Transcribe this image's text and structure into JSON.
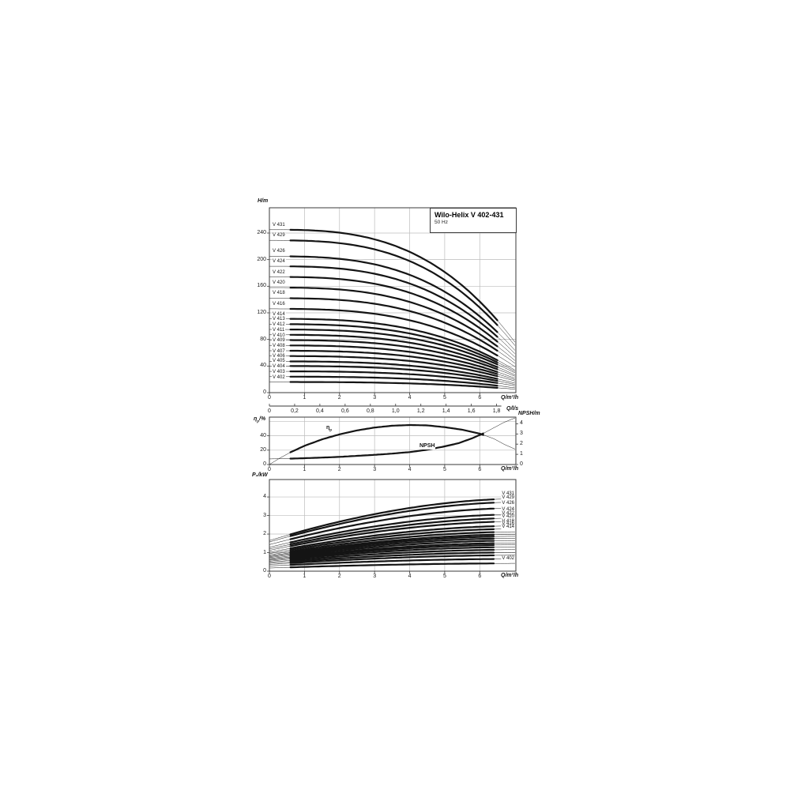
{
  "title_box": {
    "title": "Wilo-Helix V 402-431",
    "subtitle": "50 Hz"
  },
  "colors": {
    "background": "#ffffff",
    "curve": "#141414",
    "grid": "#bcbcbc",
    "axis": "#3a3a3a",
    "text": "#1a1a1a"
  },
  "chart_data": [
    {
      "id": "head_flow_curves",
      "type": "line",
      "title": "Wilo-Helix V 402-431",
      "subtitle": "50 Hz",
      "ylabel": "H/m",
      "xlabel": "Q/m³/h",
      "xlabel2": "Q/l/s",
      "xlim": [
        0,
        7.03
      ],
      "ylim": [
        0,
        278
      ],
      "grid": true,
      "legend_position": "inline-left",
      "xticks": [
        {
          "t": "0",
          "v": 0
        },
        {
          "t": "1",
          "v": 1
        },
        {
          "t": "2",
          "v": 2
        },
        {
          "t": "3",
          "v": 3
        },
        {
          "t": "4",
          "v": 4
        },
        {
          "t": "5",
          "v": 5
        },
        {
          "t": "6",
          "v": 6
        }
      ],
      "yticks": [
        {
          "t": "0",
          "v": 0
        },
        {
          "t": "40",
          "v": 40
        },
        {
          "t": "80",
          "v": 80
        },
        {
          "t": "120",
          "v": 120
        },
        {
          "t": "160",
          "v": 160
        },
        {
          "t": "200",
          "v": 200
        },
        {
          "t": "240",
          "v": 240
        }
      ],
      "x2ticks": [
        {
          "t": "0",
          "v": 0
        },
        {
          "t": "0,2",
          "v": 0.2
        },
        {
          "t": "0,4",
          "v": 0.4
        },
        {
          "t": "0,6",
          "v": 0.6
        },
        {
          "t": "0,8",
          "v": 0.8
        },
        {
          "t": "1,0",
          "v": 1.0
        },
        {
          "t": "1,2",
          "v": 1.2
        },
        {
          "t": "1,4",
          "v": 1.4
        },
        {
          "t": "1,6",
          "v": 1.6
        },
        {
          "t": "1,8",
          "v": 1.8
        }
      ],
      "series": [
        {
          "label": "V 431",
          "h0": 245,
          "h_end": 74
        },
        {
          "label": "V 429",
          "h0": 229,
          "h_end": 69
        },
        {
          "label": "V 426",
          "h0": 205,
          "h_end": 62
        },
        {
          "label": "V 424",
          "h0": 190,
          "h_end": 57
        },
        {
          "label": "V 422",
          "h0": 174,
          "h_end": 52
        },
        {
          "label": "V 420",
          "h0": 158,
          "h_end": 47
        },
        {
          "label": "V 418",
          "h0": 142,
          "h_end": 43
        },
        {
          "label": "V 416",
          "h0": 126,
          "h_end": 38
        },
        {
          "label": "V 414",
          "h0": 111,
          "h_end": 33
        },
        {
          "label": "V 413",
          "h0": 103,
          "h_end": 31
        },
        {
          "label": "V 412",
          "h0": 95,
          "h_end": 29
        },
        {
          "label": "V 411",
          "h0": 87,
          "h_end": 26
        },
        {
          "label": "V 410",
          "h0": 79,
          "h_end": 24
        },
        {
          "label": "V 409",
          "h0": 71,
          "h_end": 21
        },
        {
          "label": "V 408",
          "h0": 63,
          "h_end": 19
        },
        {
          "label": "V 407",
          "h0": 55,
          "h_end": 17
        },
        {
          "label": "V 406",
          "h0": 47,
          "h_end": 14
        },
        {
          "label": "V 405",
          "h0": 40,
          "h_end": 12
        },
        {
          "label": "V 404",
          "h0": 32,
          "h_end": 10
        },
        {
          "label": "V 403",
          "h0": 24,
          "h_end": 7
        },
        {
          "label": "V 402",
          "h0": 16,
          "h_end": 5
        }
      ]
    },
    {
      "id": "efficiency_npsh",
      "type": "line",
      "ylabel_left": "ηp/%",
      "ylabel_left_parts": {
        "sym": "η",
        "sub": "p",
        "rest": "/%"
      },
      "ylabel_right": "NPSH/m",
      "xlabel": "Q/m³/h",
      "xlim": [
        0,
        7.03
      ],
      "ylim_left": [
        0,
        66
      ],
      "ylim_right": [
        0,
        4.65
      ],
      "grid": true,
      "xticks": [
        {
          "t": "0",
          "v": 0
        },
        {
          "t": "1",
          "v": 1
        },
        {
          "t": "2",
          "v": 2
        },
        {
          "t": "3",
          "v": 3
        },
        {
          "t": "4",
          "v": 4
        },
        {
          "t": "5",
          "v": 5
        },
        {
          "t": "6",
          "v": 6
        }
      ],
      "yticks_left": [
        {
          "t": "0",
          "v": 0
        },
        {
          "t": "20",
          "v": 20
        },
        {
          "t": "40",
          "v": 40
        }
      ],
      "yticks_right": [
        {
          "t": "0",
          "v": 0
        },
        {
          "t": "1",
          "v": 1
        },
        {
          "t": "2",
          "v": 2
        },
        {
          "t": "3",
          "v": 3
        },
        {
          "t": "4",
          "v": 4
        }
      ],
      "series": [
        {
          "name": "ηp",
          "label_parts": {
            "sym": "η",
            "sub": "p"
          },
          "axis": "left",
          "points": [
            [
              0,
              0
            ],
            [
              0.3,
              9
            ],
            [
              0.6,
              17
            ],
            [
              1,
              26
            ],
            [
              1.5,
              35
            ],
            [
              2,
              42
            ],
            [
              2.5,
              47.5
            ],
            [
              3,
              51.5
            ],
            [
              3.5,
              54
            ],
            [
              4,
              55
            ],
            [
              4.5,
              54.5
            ],
            [
              5,
              52
            ],
            [
              5.5,
              48.5
            ],
            [
              6,
              43
            ],
            [
              6.4,
              36
            ],
            [
              6.7,
              28
            ],
            [
              7.03,
              21
            ]
          ]
        },
        {
          "name": "NPSH",
          "axis": "right",
          "points": [
            [
              0,
              0.55
            ],
            [
              0.6,
              0.58
            ],
            [
              1,
              0.62
            ],
            [
              1.5,
              0.68
            ],
            [
              2,
              0.75
            ],
            [
              2.5,
              0.85
            ],
            [
              3,
              0.95
            ],
            [
              3.5,
              1.07
            ],
            [
              4,
              1.22
            ],
            [
              4.5,
              1.45
            ],
            [
              5,
              1.78
            ],
            [
              5.4,
              2.1
            ],
            [
              5.8,
              2.6
            ],
            [
              6.1,
              3.05
            ],
            [
              6.4,
              3.6
            ],
            [
              6.7,
              4.15
            ],
            [
              7.03,
              4.6
            ]
          ]
        }
      ]
    },
    {
      "id": "power_curves",
      "type": "line",
      "ylabel": "P₂/kW",
      "xlabel": "Q/m³/h",
      "xlim": [
        0,
        7.03
      ],
      "ylim": [
        0,
        4.94
      ],
      "grid": true,
      "xticks": [
        {
          "t": "0",
          "v": 0
        },
        {
          "t": "1",
          "v": 1
        },
        {
          "t": "2",
          "v": 2
        },
        {
          "t": "3",
          "v": 3
        },
        {
          "t": "4",
          "v": 4
        },
        {
          "t": "5",
          "v": 5
        },
        {
          "t": "6",
          "v": 6
        }
      ],
      "yticks": [
        {
          "t": "0",
          "v": 0
        },
        {
          "t": "1",
          "v": 1
        },
        {
          "t": "2",
          "v": 2
        },
        {
          "t": "3",
          "v": 3
        },
        {
          "t": "4",
          "v": 4
        }
      ],
      "series": [
        {
          "label": "V 431",
          "p0": 1.65,
          "p_max": 3.9,
          "labeled": true
        },
        {
          "label": "V 429",
          "p0": 1.57,
          "p_max": 3.72,
          "labeled": true
        },
        {
          "label": "V 426",
          "p0": 1.43,
          "p_max": 3.4,
          "labeled": true
        },
        {
          "label": "V 424",
          "p0": 1.29,
          "p_max": 3.06,
          "labeled": true
        },
        {
          "label": "V 422",
          "p0": 1.2,
          "p_max": 2.86,
          "labeled": true
        },
        {
          "label": "V 420",
          "p0": 1.12,
          "p_max": 2.68,
          "labeled": true
        },
        {
          "label": "V 418",
          "p0": 1.02,
          "p_max": 2.44,
          "labeled": true
        },
        {
          "label": "V 416",
          "p0": 0.95,
          "p_max": 2.28,
          "labeled": true
        },
        {
          "label": "V 414",
          "p0": 0.88,
          "p_max": 2.12,
          "labeled": true
        },
        {
          "label": "V 413",
          "p0": 0.82,
          "p_max": 1.98,
          "labeled": false
        },
        {
          "label": "V 412",
          "p0": 0.78,
          "p_max": 1.88,
          "labeled": false
        },
        {
          "label": "V 411",
          "p0": 0.73,
          "p_max": 1.77,
          "labeled": false
        },
        {
          "label": "V 410",
          "p0": 0.68,
          "p_max": 1.65,
          "labeled": false
        },
        {
          "label": "V 409",
          "p0": 0.63,
          "p_max": 1.52,
          "labeled": false
        },
        {
          "label": "V 408",
          "p0": 0.59,
          "p_max": 1.42,
          "labeled": false
        },
        {
          "label": "V 407",
          "p0": 0.54,
          "p_max": 1.3,
          "labeled": false
        },
        {
          "label": "V 406",
          "p0": 0.48,
          "p_max": 1.16,
          "labeled": false
        },
        {
          "label": "V 405",
          "p0": 0.42,
          "p_max": 1.01,
          "labeled": false
        },
        {
          "label": "V 404",
          "p0": 0.36,
          "p_max": 0.86,
          "labeled": false
        },
        {
          "label": "V 403",
          "p0": 0.28,
          "p_max": 0.66,
          "labeled": false
        },
        {
          "label": "V 402",
          "p0": 0.17,
          "p_max": 0.42,
          "labeled": true
        }
      ]
    }
  ]
}
